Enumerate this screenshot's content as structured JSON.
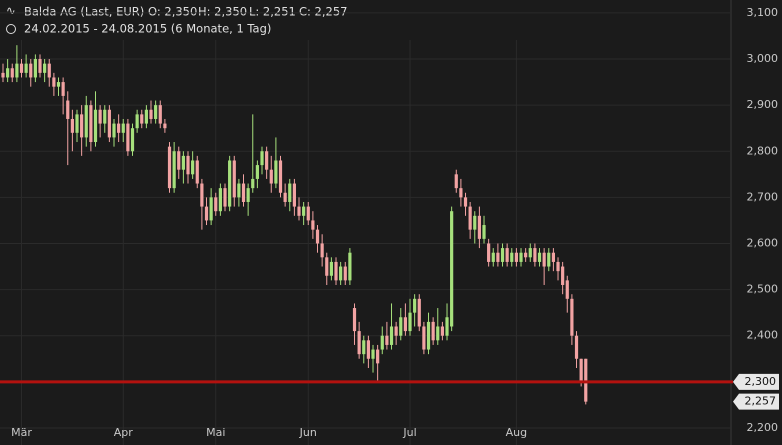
{
  "chart_data": {
    "type": "candlestick",
    "title": "Balda AG (Last, EUR)",
    "ohlc_text": [
      "O: 2,350",
      "H: 2,350",
      "L: 2,251",
      "C: 2,257"
    ],
    "subtitle": "24.02.2015 - 24.08.2015 (6 Monate, 1 Tag)",
    "up_color": "#a6e07c",
    "down_color": "#f2a3a3",
    "ylim": [
      2.163,
      3.128
    ],
    "xlim": [
      -0.65,
      157.4
    ],
    "yticks": [
      {
        "value": 2.2,
        "label": "2,200"
      },
      {
        "value": 2.3,
        "label": "2,300"
      },
      {
        "value": 2.4,
        "label": "2,400"
      },
      {
        "value": 2.5,
        "label": "2,500"
      },
      {
        "value": 2.6,
        "label": "2,600"
      },
      {
        "value": 2.7,
        "label": "2,700"
      },
      {
        "value": 2.8,
        "label": "2,800"
      },
      {
        "value": 2.9,
        "label": "2,900"
      },
      {
        "value": 3.0,
        "label": "3,000"
      },
      {
        "value": 3.1,
        "label": "3,100"
      }
    ],
    "xticks": [
      {
        "value": 4,
        "label": "Mär"
      },
      {
        "value": 26,
        "label": "Apr"
      },
      {
        "value": 46,
        "label": "Mai"
      },
      {
        "value": 66,
        "label": "Jun"
      },
      {
        "value": 88,
        "label": "Jul"
      },
      {
        "value": 111,
        "label": "Aug"
      }
    ],
    "grid": true,
    "hline": {
      "value": 2.3,
      "label": "2,300",
      "color": "#b3120f"
    },
    "last_price": {
      "value": 2.257,
      "label": "2,257"
    },
    "open": [
      2.97,
      2.96,
      2.98,
      2.96,
      2.99,
      2.97,
      2.99,
      2.96,
      3.0,
      2.97,
      2.99,
      2.96,
      2.94,
      2.95,
      2.91,
      2.87,
      2.84,
      2.88,
      2.83,
      2.9,
      2.82,
      2.89,
      2.86,
      2.89,
      2.83,
      2.86,
      2.84,
      2.86,
      2.8,
      2.85,
      2.88,
      2.86,
      2.89,
      2.87,
      2.9,
      2.86,
      2.81,
      2.72,
      2.8,
      2.76,
      2.79,
      2.75,
      2.78,
      2.73,
      2.68,
      2.65,
      2.7,
      2.67,
      2.72,
      2.68,
      2.78,
      2.7,
      2.73,
      2.69,
      2.72,
      2.74,
      2.77,
      2.8,
      2.76,
      2.73,
      2.78,
      2.71,
      2.69,
      2.73,
      2.68,
      2.66,
      2.68,
      2.65,
      2.63,
      2.6,
      2.57,
      2.53,
      2.56,
      2.52,
      2.55,
      2.52,
      2.46,
      2.41,
      2.36,
      2.39,
      2.35,
      2.37,
      2.37,
      2.4,
      2.38,
      2.42,
      2.4,
      2.44,
      2.41,
      2.45,
      2.48,
      2.42,
      2.37,
      2.43,
      2.39,
      2.42,
      2.4,
      2.42,
      2.75,
      2.72,
      2.7,
      2.68,
      2.63,
      2.66,
      2.61,
      2.6,
      2.56,
      2.58,
      2.56,
      2.59,
      2.56,
      2.58,
      2.56,
      2.58,
      2.57,
      2.59,
      2.56,
      2.58,
      2.55,
      2.58,
      2.56,
      2.55,
      2.52,
      2.48,
      2.4,
      2.35,
      2.35
    ],
    "high": [
      2.99,
      3.0,
      2.99,
      3.03,
      3.0,
      3.01,
      3.0,
      3.01,
      3.01,
      3.0,
      3.0,
      2.97,
      2.96,
      2.96,
      2.93,
      2.89,
      2.89,
      2.9,
      2.92,
      2.91,
      2.93,
      2.9,
      2.9,
      2.9,
      2.87,
      2.88,
      2.87,
      2.87,
      2.86,
      2.89,
      2.89,
      2.9,
      2.91,
      2.91,
      2.91,
      2.87,
      2.82,
      2.82,
      2.81,
      2.8,
      2.8,
      2.8,
      2.79,
      2.74,
      2.7,
      2.72,
      2.71,
      2.73,
      2.73,
      2.79,
      2.79,
      2.74,
      2.75,
      2.73,
      2.88,
      2.78,
      2.81,
      2.81,
      2.79,
      2.83,
      2.79,
      2.73,
      2.74,
      2.74,
      2.7,
      2.69,
      2.69,
      2.67,
      2.64,
      2.62,
      2.58,
      2.57,
      2.57,
      2.56,
      2.56,
      2.59,
      2.47,
      2.43,
      2.4,
      2.4,
      2.38,
      2.38,
      2.42,
      2.43,
      2.47,
      2.43,
      2.46,
      2.47,
      2.48,
      2.49,
      2.49,
      2.43,
      2.45,
      2.44,
      2.46,
      2.43,
      2.47,
      2.68,
      2.76,
      2.74,
      2.71,
      2.69,
      2.67,
      2.68,
      2.66,
      2.61,
      2.59,
      2.6,
      2.6,
      2.6,
      2.59,
      2.59,
      2.59,
      2.59,
      2.6,
      2.6,
      2.59,
      2.59,
      2.59,
      2.59,
      2.57,
      2.56,
      2.53,
      2.49,
      2.41,
      2.35,
      2.35
    ],
    "low": [
      2.95,
      2.95,
      2.95,
      2.95,
      2.96,
      2.96,
      2.94,
      2.95,
      2.96,
      2.95,
      2.94,
      2.92,
      2.92,
      2.88,
      2.77,
      2.8,
      2.82,
      2.79,
      2.81,
      2.8,
      2.81,
      2.83,
      2.84,
      2.82,
      2.81,
      2.82,
      2.82,
      2.79,
      2.79,
      2.84,
      2.85,
      2.85,
      2.86,
      2.86,
      2.85,
      2.84,
      2.71,
      2.71,
      2.74,
      2.73,
      2.73,
      2.74,
      2.72,
      2.63,
      2.64,
      2.64,
      2.66,
      2.66,
      2.67,
      2.67,
      2.68,
      2.68,
      2.68,
      2.66,
      2.71,
      2.72,
      2.75,
      2.74,
      2.71,
      2.72,
      2.7,
      2.68,
      2.67,
      2.66,
      2.65,
      2.64,
      2.64,
      2.61,
      2.58,
      2.55,
      2.51,
      2.52,
      2.51,
      2.51,
      2.51,
      2.51,
      2.38,
      2.35,
      2.34,
      2.33,
      2.32,
      2.3,
      2.36,
      2.37,
      2.37,
      2.38,
      2.39,
      2.4,
      2.4,
      2.42,
      2.41,
      2.36,
      2.36,
      2.38,
      2.38,
      2.39,
      2.39,
      2.41,
      2.71,
      2.68,
      2.66,
      2.61,
      2.6,
      2.59,
      2.6,
      2.55,
      2.55,
      2.55,
      2.55,
      2.55,
      2.55,
      2.55,
      2.55,
      2.56,
      2.56,
      2.55,
      2.55,
      2.51,
      2.54,
      2.54,
      2.52,
      2.49,
      2.45,
      2.38,
      2.33,
      2.29,
      2.251
    ],
    "close": [
      2.96,
      2.98,
      2.96,
      2.99,
      2.97,
      2.99,
      2.96,
      3.0,
      2.97,
      2.99,
      2.96,
      2.94,
      2.95,
      2.92,
      2.87,
      2.84,
      2.88,
      2.83,
      2.9,
      2.82,
      2.89,
      2.86,
      2.89,
      2.83,
      2.86,
      2.84,
      2.86,
      2.8,
      2.85,
      2.88,
      2.86,
      2.89,
      2.87,
      2.9,
      2.86,
      2.85,
      2.72,
      2.8,
      2.76,
      2.79,
      2.75,
      2.78,
      2.73,
      2.68,
      2.65,
      2.7,
      2.67,
      2.72,
      2.68,
      2.78,
      2.7,
      2.73,
      2.69,
      2.72,
      2.74,
      2.77,
      2.8,
      2.76,
      2.73,
      2.78,
      2.71,
      2.69,
      2.73,
      2.68,
      2.66,
      2.68,
      2.65,
      2.63,
      2.6,
      2.57,
      2.53,
      2.56,
      2.52,
      2.55,
      2.52,
      2.58,
      2.41,
      2.36,
      2.39,
      2.35,
      2.37,
      2.34,
      2.4,
      2.38,
      2.42,
      2.4,
      2.44,
      2.41,
      2.45,
      2.48,
      2.42,
      2.37,
      2.43,
      2.39,
      2.42,
      2.4,
      2.44,
      2.67,
      2.72,
      2.7,
      2.68,
      2.63,
      2.66,
      2.61,
      2.64,
      2.56,
      2.58,
      2.56,
      2.59,
      2.56,
      2.58,
      2.56,
      2.58,
      2.57,
      2.59,
      2.56,
      2.58,
      2.55,
      2.58,
      2.56,
      2.54,
      2.51,
      2.48,
      2.4,
      2.35,
      2.3,
      2.257
    ]
  }
}
